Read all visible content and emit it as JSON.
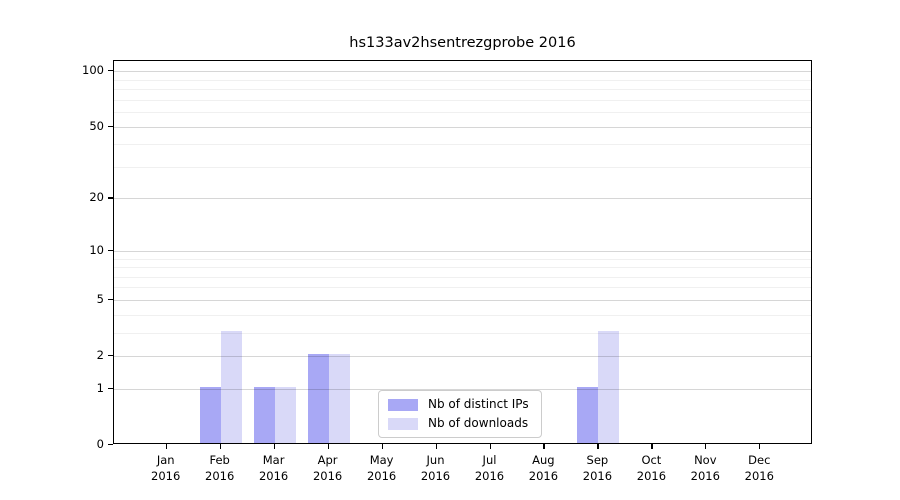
{
  "chart_data": {
    "type": "bar",
    "title": "hs133av2hsentrezgprobe 2016",
    "categories": [
      "Jan 2016",
      "Feb 2016",
      "Mar 2016",
      "Apr 2016",
      "May 2016",
      "Jun 2016",
      "Jul 2016",
      "Aug 2016",
      "Sep 2016",
      "Oct 2016",
      "Nov 2016",
      "Dec 2016"
    ],
    "series": [
      {
        "key": "distinct-ips",
        "name": "Nb of distinct IPs",
        "color": "#a8a8f5",
        "values": [
          0,
          1,
          1,
          2,
          0,
          0,
          0,
          0,
          1,
          0,
          0,
          0
        ]
      },
      {
        "key": "downloads",
        "name": "Nb of downloads",
        "color": "#d9d9f8",
        "values": [
          0,
          3,
          1,
          2,
          0,
          0,
          0,
          0,
          3,
          0,
          0,
          0
        ]
      }
    ],
    "y_scale": "log1p",
    "y_ticks_major": [
      0,
      1,
      2,
      5,
      10,
      20,
      50,
      100
    ],
    "y_ticks_minor": [
      3,
      4,
      6,
      7,
      8,
      9,
      30,
      40,
      60,
      70,
      80,
      90
    ],
    "ylim": [
      0,
      115
    ],
    "grid": "horizontal-only",
    "grid_above_bars": true,
    "legend_position": "lower center",
    "background_color": "#ffffff",
    "axis_color": "#000000"
  }
}
